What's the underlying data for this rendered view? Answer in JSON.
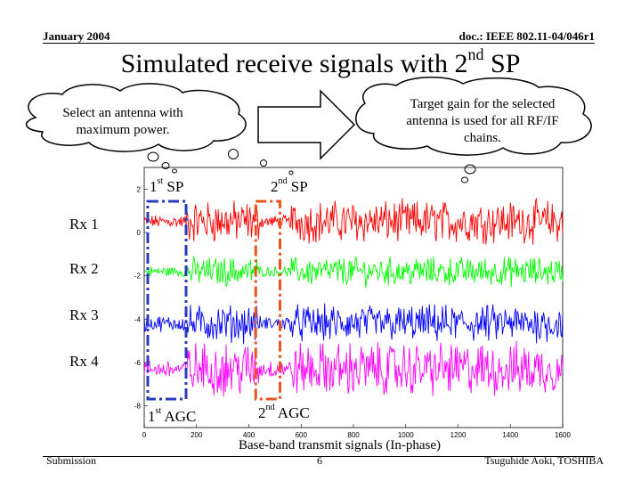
{
  "header": {
    "date": "January 2004",
    "doc_id": "doc.: IEEE 802.11-04/046r1"
  },
  "title": {
    "main": "Simulated receive signals with 2",
    "sup": "nd",
    "tail": " SP"
  },
  "callouts": {
    "left": "Select an antenna with maximum power.",
    "right": "Target gain for the selected antenna is used for all RF/IF chains."
  },
  "rx_labels": [
    "Rx 1",
    "Rx 2",
    "Rx 3",
    "Rx 4"
  ],
  "markers": {
    "sp1": {
      "num": "1",
      "sup": "st",
      "rest": " SP"
    },
    "sp2": {
      "num": "2",
      "sup": "nd",
      "rest": " SP"
    },
    "agc1": {
      "num": "1",
      "sup": "st",
      "rest": " AGC"
    },
    "agc2": {
      "num": "2",
      "sup": "nd",
      "rest": " AGC"
    }
  },
  "chart_data": {
    "type": "line",
    "title": "",
    "xlabel": "Base-band transmit signals (In-phase)",
    "ylabel": "",
    "xlim": [
      0,
      1600
    ],
    "ylim": [
      -9,
      3
    ],
    "x_ticks": [
      "0",
      "200",
      "400",
      "600",
      "800",
      "1000",
      "1200",
      "1400",
      "1600"
    ],
    "y_ticks": [
      "2",
      "0",
      "-2",
      "-4",
      "-6",
      "-8"
    ],
    "series": [
      {
        "name": "Rx 1",
        "color": "#ff0000",
        "center": 0.5,
        "spread": 0.8,
        "sp_region_spread": 0.25
      },
      {
        "name": "Rx 2",
        "color": "#00ff00",
        "center": -1.8,
        "spread": 0.55,
        "sp_region_spread": 0.2
      },
      {
        "name": "Rx 3",
        "color": "#0000ff",
        "center": -4.2,
        "spread": 0.7,
        "sp_region_spread": 0.3
      },
      {
        "name": "Rx 4",
        "color": "#ff00ff",
        "center": -6.3,
        "spread": 1.0,
        "sp_region_spread": 0.35
      }
    ],
    "first_sp_range": [
      0,
      160
    ],
    "second_sp_range": [
      440,
      560
    ]
  },
  "footer": {
    "left": "Submission",
    "page": "6",
    "right": "Tsuguhide Aoki, TOSHIBA"
  },
  "colors": {
    "first_box": "#2a3db8",
    "second_box": "#e8541e"
  }
}
